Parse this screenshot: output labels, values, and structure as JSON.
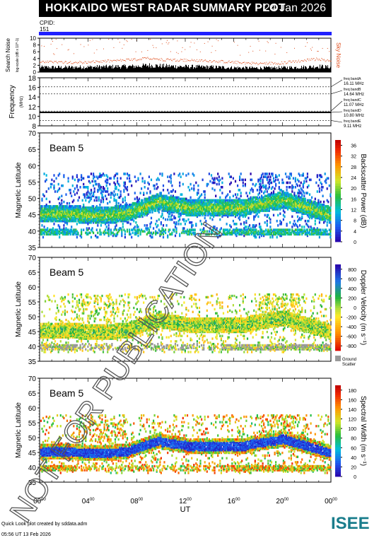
{
  "header": {
    "title": "HOKKAIDO WEST RADAR SUMMARY PLOT",
    "date": "24 Jan 2026",
    "cpid_label": "CPID:",
    "cpid_value": "151"
  },
  "footer": {
    "created_by": "Quick Look plot created by sddata.adm",
    "timestamp": "05:56 UT 13 Feb 2026",
    "logo_text": "ISEE"
  },
  "watermark": "NOT FOR PUBLICATION",
  "colors": {
    "cpid_bar": "#2020ff",
    "sky_noise": "#e05020",
    "search_noise": "#000000",
    "ground_scatter": "#999999",
    "logo_teal": "#1a7d8c",
    "logo_green": "#3bb04a",
    "logo_navy": "#1e2a6e"
  },
  "chart_data": [
    {
      "type": "bar",
      "panel": "noise",
      "ylabel_main": "Search Noise",
      "ylabel_sub": "log-scale (dB x 10^-1)",
      "right_label": "Sky Noise",
      "ylim": [
        0,
        10
      ],
      "yticks": [
        "0",
        "2",
        "4",
        "6",
        "8",
        "10"
      ],
      "series": [
        {
          "name": "Sky Noise",
          "x": [
            0,
            2,
            4,
            6,
            8,
            9,
            10,
            12,
            14,
            16,
            18,
            20,
            22,
            23,
            24
          ],
          "values": [
            3.0,
            3.0,
            3.0,
            3.4,
            3.8,
            4.2,
            3.8,
            3.6,
            3.4,
            3.0,
            2.6,
            2.8,
            3.6,
            4.0,
            3.2
          ]
        },
        {
          "name": "Search Noise",
          "x": [
            0,
            2,
            4,
            6,
            8,
            9,
            10,
            12,
            14,
            16,
            18,
            20,
            22,
            23,
            24
          ],
          "values": [
            1.4,
            1.4,
            1.5,
            1.6,
            1.7,
            2.0,
            1.8,
            1.6,
            1.5,
            1.3,
            1.2,
            1.3,
            1.5,
            1.7,
            1.4
          ]
        }
      ]
    },
    {
      "type": "line",
      "panel": "frequency",
      "ylabel_main": "Frequency",
      "ylabel_sub": "(MHz)",
      "ylim": [
        8,
        18
      ],
      "yticks": [
        "8",
        "10",
        "12",
        "14",
        "16",
        "18"
      ],
      "bands": [
        {
          "name": "freq bandA",
          "value": "16.11 MHz",
          "freq": 16.11
        },
        {
          "name": "freq bandB",
          "value": "14.64 MHz",
          "freq": 14.64
        },
        {
          "name": "freq bandC",
          "value": "11.07 MHz",
          "freq": 11.07
        },
        {
          "name": "freq bandD",
          "value": "10.80 MHz",
          "freq": 10.8
        },
        {
          "name": "freq bandE",
          "value": "9.11 MHz",
          "freq": 9.11
        }
      ],
      "active_band_freq": 10.8
    },
    {
      "type": "heatmap",
      "panel": "power",
      "beam_label": "Beam  5",
      "ylabel": "Magnetic Latitude",
      "ylim": [
        35,
        70
      ],
      "yticks": [
        "35",
        "40",
        "45",
        "50",
        "55",
        "60",
        "65",
        "70"
      ],
      "colorbar_label": "Backscatter Power (dB)",
      "colorbar_ticks": [
        "0",
        "4",
        "8",
        "12",
        "16",
        "20",
        "24",
        "28",
        "32",
        "36"
      ],
      "colorbar_range": [
        0,
        38
      ]
    },
    {
      "type": "heatmap",
      "panel": "velocity",
      "beam_label": "Beam  5",
      "ylabel": "Magnetic Latitude",
      "ylim": [
        35,
        70
      ],
      "yticks": [
        "35",
        "40",
        "45",
        "50",
        "55",
        "60",
        "65",
        "70"
      ],
      "colorbar_label": "Doppler Velocity (m s⁻¹)",
      "colorbar_ticks": [
        "-800",
        "-600",
        "-400",
        "-200",
        "0",
        "200",
        "400",
        "600",
        "800"
      ],
      "colorbar_range": [
        -900,
        900
      ],
      "ground_scatter_label": [
        "Ground",
        "Scatter"
      ]
    },
    {
      "type": "heatmap",
      "panel": "width",
      "beam_label": "Beam  5",
      "ylabel": "Magnetic Latitude",
      "ylim": [
        35,
        70
      ],
      "yticks": [
        "35",
        "40",
        "45",
        "50",
        "55",
        "60",
        "65",
        "70"
      ],
      "colorbar_label": "Spectral Width (m s⁻¹)",
      "colorbar_ticks": [
        "0",
        "20",
        "40",
        "60",
        "80",
        "100",
        "120",
        "140",
        "160",
        "180"
      ],
      "colorbar_range": [
        0,
        190
      ]
    }
  ],
  "time_axis": {
    "xlabel": "UT",
    "xlim": [
      0,
      24
    ],
    "ticks": [
      {
        "h": "00",
        "m": "00"
      },
      {
        "h": "04",
        "m": "00"
      },
      {
        "h": "08",
        "m": "00"
      },
      {
        "h": "12",
        "m": "00"
      },
      {
        "h": "16",
        "m": "00"
      },
      {
        "h": "20",
        "m": "00"
      },
      {
        "h": "00",
        "m": "00"
      }
    ]
  }
}
